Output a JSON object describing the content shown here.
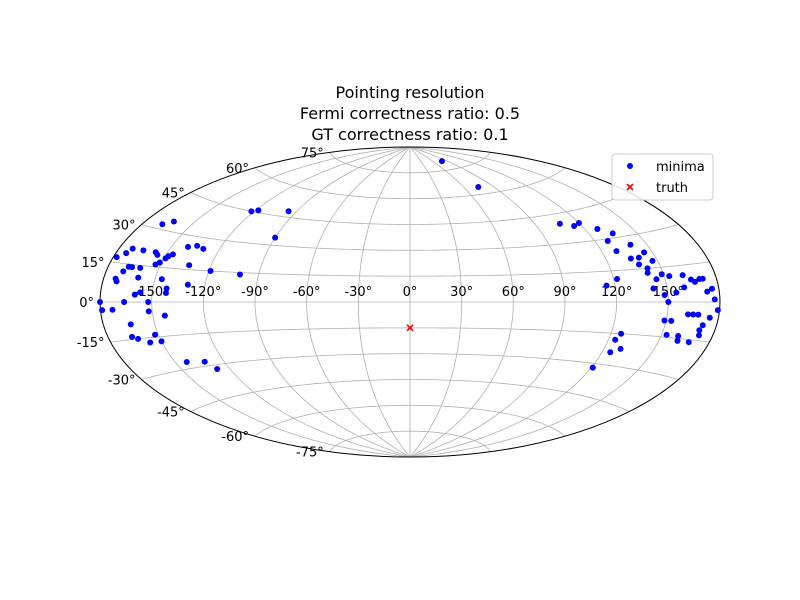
{
  "chart_data": {
    "type": "scatter",
    "projection": "aitoff",
    "title_lines": [
      "Pointing resolution",
      "Fermi correctness ratio: 0.5",
      "GT correctness ratio: 0.1"
    ],
    "x_ticks": [
      "-150°",
      "-120°",
      "-90°",
      "-60°",
      "-30°",
      "0°",
      "30°",
      "60°",
      "90°",
      "120°",
      "150°"
    ],
    "x_tick_values": [
      -150,
      -120,
      -90,
      -60,
      -30,
      0,
      30,
      60,
      90,
      120,
      150
    ],
    "y_ticks": [
      "-75°",
      "-60°",
      "-45°",
      "-30°",
      "-15°",
      "0°",
      "15°",
      "30°",
      "45°",
      "60°",
      "75°"
    ],
    "y_tick_values": [
      -75,
      -60,
      -45,
      -30,
      -15,
      0,
      15,
      30,
      45,
      60,
      75
    ],
    "xlim": [
      -180,
      180
    ],
    "ylim": [
      -90,
      90
    ],
    "grid": true,
    "legend_position": "top-right",
    "series": [
      {
        "name": "minima",
        "marker": "circle",
        "color": "#0000ff",
        "points": [
          [
            -168,
            32
          ],
          [
            -163,
            34
          ],
          [
            -174,
            19
          ],
          [
            -172,
            21
          ],
          [
            -178,
            17
          ],
          [
            -168,
            14
          ],
          [
            -165,
            21
          ],
          [
            -166,
            14
          ],
          [
            -170,
            12
          ],
          [
            -155,
            20
          ],
          [
            -153,
            16
          ],
          [
            -149,
            19
          ],
          [
            -148,
            20
          ],
          [
            -146,
            21
          ],
          [
            -157,
            21
          ],
          [
            -151,
            17
          ],
          [
            -135,
            26
          ],
          [
            -140,
            25
          ],
          [
            -130,
            25
          ],
          [
            -122,
            45
          ],
          [
            -118,
            46
          ],
          [
            -96,
            48
          ],
          [
            -90,
            34
          ],
          [
            -119,
            15
          ],
          [
            -133,
            17
          ],
          [
            -146,
            10
          ],
          [
            -161,
            14
          ],
          [
            -160,
            10
          ],
          [
            -142,
            6
          ],
          [
            -101,
            14
          ],
          [
            -130,
            8
          ],
          [
            -180,
            0
          ],
          [
            -179,
            -3
          ],
          [
            -173,
            -3
          ],
          [
            -166,
            0
          ],
          [
            -172,
            8
          ],
          [
            -173,
            9
          ],
          [
            -160,
            3
          ],
          [
            -152,
            0
          ],
          [
            -157,
            4
          ],
          [
            -152,
            -4
          ],
          [
            -143,
            -6
          ],
          [
            -142,
            4
          ],
          [
            -164,
            -9
          ],
          [
            -166,
            -14
          ],
          [
            -163,
            -15
          ],
          [
            -152,
            -14
          ],
          [
            -150,
            -17
          ],
          [
            -157,
            -17
          ],
          [
            -143,
            -27
          ],
          [
            -132,
            -28
          ],
          [
            -128,
            -32
          ],
          [
            80,
            80
          ],
          [
            75,
            64
          ],
          [
            107,
            40
          ],
          [
            115,
            38
          ],
          [
            120,
            39
          ],
          [
            128,
            35
          ],
          [
            135,
            32
          ],
          [
            128,
            29
          ],
          [
            129,
            24
          ],
          [
            140,
            26
          ],
          [
            145,
            22
          ],
          [
            135,
            20
          ],
          [
            140,
            20
          ],
          [
            142,
            15
          ],
          [
            147,
            18
          ],
          [
            138,
            17
          ],
          [
            141,
            13
          ],
          [
            149,
            12
          ],
          [
            145,
            10
          ],
          [
            153,
            11
          ],
          [
            161,
            11
          ],
          [
            165,
            9
          ],
          [
            170,
            9
          ],
          [
            172,
            9
          ],
          [
            167,
            8
          ],
          [
            160,
            6
          ],
          [
            155,
            4
          ],
          [
            122,
            11
          ],
          [
            115,
            8
          ],
          [
            142,
            6
          ],
          [
            148,
            3
          ],
          [
            150,
            0
          ],
          [
            177,
            1
          ],
          [
            176,
            5
          ],
          [
            173,
            4
          ],
          [
            179,
            -3
          ],
          [
            172,
            -9
          ],
          [
            162,
            -5
          ],
          [
            165,
            -5
          ],
          [
            168,
            -5
          ],
          [
            153,
            -8
          ],
          [
            149,
            -8
          ],
          [
            153,
            -14
          ],
          [
            160,
            -14
          ],
          [
            172,
            -13
          ],
          [
            168,
            -16
          ],
          [
            161,
            -16
          ],
          [
            126,
            -15
          ],
          [
            124,
            -18
          ],
          [
            130,
            -22
          ],
          [
            125,
            -24
          ],
          [
            121,
            -32
          ],
          [
            175,
            -6
          ],
          [
            171,
            -11
          ]
        ]
      },
      {
        "name": "truth",
        "marker": "x",
        "color": "#ff0000",
        "points": [
          [
            0,
            -15
          ]
        ]
      }
    ]
  },
  "legend": {
    "entries": [
      {
        "label": "minima",
        "marker": "circle",
        "color": "#0000ff"
      },
      {
        "label": "truth",
        "marker": "x",
        "color": "#ff0000"
      }
    ]
  }
}
